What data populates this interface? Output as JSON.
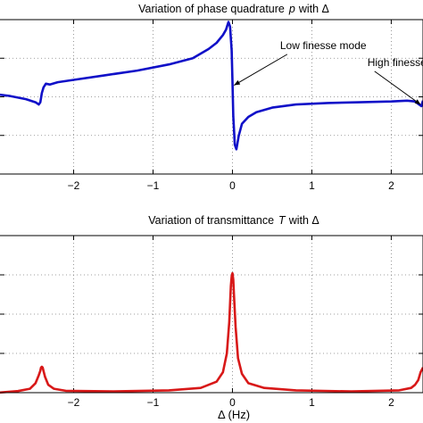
{
  "chart_data": [
    {
      "type": "line",
      "title": "Variation of phase quadrature  p with Δ",
      "title_plain": "Variation of phase quadrature",
      "title_var": "p",
      "title_tail": "with Δ",
      "xlabel": "",
      "ylabel": "",
      "xlim": [
        -2.95,
        2.4
      ],
      "ylim": [
        -1.0,
        1.0
      ],
      "xticks": [
        -2,
        -1,
        0,
        1,
        2
      ],
      "xtick_labels": [
        "−2",
        "−1",
        "0",
        "1",
        "2"
      ],
      "yticks": [
        -0.5,
        0,
        0.5
      ],
      "grid": true,
      "color": "#1010c8",
      "series": [
        {
          "x": [
            -2.95,
            -2.8,
            -2.6,
            -2.48,
            -2.44,
            -2.42,
            -2.4,
            -2.38,
            -2.35,
            -2.3,
            -2.2,
            -2.0,
            -1.6,
            -1.2,
            -0.8,
            -0.5,
            -0.3,
            -0.2,
            -0.12,
            -0.08,
            -0.05,
            -0.03,
            -0.01,
            0.0,
            0.01,
            0.03,
            0.05,
            0.08,
            0.12,
            0.2,
            0.3,
            0.5,
            0.8,
            1.2,
            1.6,
            2.0,
            2.2,
            2.3,
            2.35,
            2.38,
            2.4
          ],
          "y": [
            0.03,
            0.01,
            -0.03,
            -0.07,
            -0.1,
            -0.07,
            0.05,
            0.12,
            0.17,
            0.16,
            0.19,
            0.22,
            0.28,
            0.34,
            0.42,
            0.5,
            0.62,
            0.7,
            0.8,
            0.87,
            0.97,
            0.91,
            0.6,
            0.2,
            -0.25,
            -0.62,
            -0.68,
            -0.5,
            -0.35,
            -0.26,
            -0.2,
            -0.14,
            -0.1,
            -0.08,
            -0.07,
            -0.06,
            -0.05,
            -0.06,
            -0.1,
            -0.12,
            -0.05
          ]
        }
      ],
      "annotations": [
        {
          "text": "Low finesse mode",
          "x_data": 0.6,
          "y_data": 0.62,
          "target_x": 0.02,
          "target_y": 0.15
        },
        {
          "text": "High finesse mode",
          "x_data": 1.7,
          "y_data": 0.4,
          "target_x": 2.37,
          "target_y": -0.1
        }
      ]
    },
    {
      "type": "line",
      "title": "Variation of transmittance  T with Δ",
      "title_plain": "Variation of transmittance",
      "title_var": "T",
      "title_tail": "with Δ",
      "xlabel": "Δ (Hz)",
      "ylabel": "",
      "xlim": [
        -2.95,
        2.4
      ],
      "ylim": [
        0.0,
        1.0
      ],
      "xticks": [
        -2,
        -1,
        0,
        1,
        2
      ],
      "xtick_labels": [
        "−2",
        "−1",
        "0",
        "1",
        "2"
      ],
      "yticks": [
        0.25,
        0.5,
        0.75
      ],
      "grid": true,
      "color": "#d81818",
      "series": [
        {
          "x": [
            -2.95,
            -2.7,
            -2.55,
            -2.48,
            -2.44,
            -2.42,
            -2.41,
            -2.4,
            -2.39,
            -2.38,
            -2.36,
            -2.32,
            -2.25,
            -2.1,
            -1.5,
            -0.8,
            -0.4,
            -0.2,
            -0.12,
            -0.07,
            -0.04,
            -0.02,
            -0.01,
            0.0,
            0.01,
            0.02,
            0.04,
            0.07,
            0.12,
            0.2,
            0.4,
            0.8,
            1.5,
            2.1,
            2.25,
            2.3,
            2.34,
            2.37,
            2.4
          ],
          "y": [
            0.0,
            0.01,
            0.025,
            0.06,
            0.11,
            0.14,
            0.16,
            0.165,
            0.16,
            0.14,
            0.1,
            0.05,
            0.025,
            0.012,
            0.008,
            0.015,
            0.03,
            0.07,
            0.13,
            0.25,
            0.45,
            0.68,
            0.74,
            0.76,
            0.72,
            0.62,
            0.42,
            0.22,
            0.12,
            0.06,
            0.03,
            0.015,
            0.008,
            0.015,
            0.03,
            0.05,
            0.08,
            0.13,
            0.16
          ]
        }
      ],
      "annotations": []
    }
  ]
}
